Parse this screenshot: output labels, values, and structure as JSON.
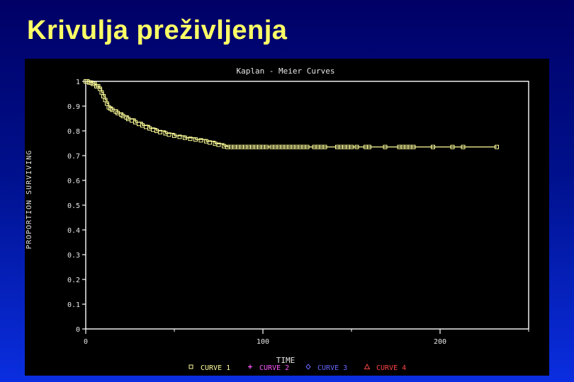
{
  "slide": {
    "title": "Krivulja preživljenja"
  },
  "chart_data": {
    "type": "line",
    "title": "Kaplan - Meier Curves",
    "xlabel": "TIME",
    "ylabel": "PROPORTION SURVIVING",
    "xlim": [
      0,
      250
    ],
    "ylim": [
      0,
      1
    ],
    "x_ticks": [
      "0",
      "100",
      "200"
    ],
    "y_ticks": [
      "0",
      "0.1",
      "0.2",
      "0.3",
      "0.4",
      "0.5",
      "0.6",
      "0.7",
      "0.8",
      "0.9",
      "1"
    ],
    "grid": false,
    "legend_placement": "bottom",
    "legend": [
      {
        "name": "CURVE 1",
        "symbol": "square",
        "color": "#ffff99"
      },
      {
        "name": "CURVE 2",
        "symbol": "plus",
        "color": "#ff55ff"
      },
      {
        "name": "CURVE 3",
        "symbol": "diamond",
        "color": "#6666ff"
      },
      {
        "name": "CURVE 4",
        "symbol": "triangle",
        "color": "#ff4444"
      }
    ],
    "series": [
      {
        "name": "CURVE 1",
        "color": "#ffff99",
        "step": [
          [
            0,
            1.0
          ],
          [
            2,
            0.995
          ],
          [
            4,
            0.99
          ],
          [
            6,
            0.98
          ],
          [
            8,
            0.97
          ],
          [
            9,
            0.955
          ],
          [
            10,
            0.94
          ],
          [
            11,
            0.925
          ],
          [
            12,
            0.91
          ],
          [
            13,
            0.895
          ],
          [
            15,
            0.885
          ],
          [
            18,
            0.872
          ],
          [
            21,
            0.86
          ],
          [
            24,
            0.848
          ],
          [
            28,
            0.835
          ],
          [
            32,
            0.822
          ],
          [
            36,
            0.81
          ],
          [
            40,
            0.8
          ],
          [
            45,
            0.79
          ],
          [
            50,
            0.78
          ],
          [
            56,
            0.772
          ],
          [
            62,
            0.765
          ],
          [
            68,
            0.758
          ],
          [
            73,
            0.748
          ],
          [
            78,
            0.738
          ],
          [
            80,
            0.735
          ],
          [
            232,
            0.735
          ]
        ],
        "censored": [
          [
            0,
            1.0
          ],
          [
            1,
            1.0
          ],
          [
            2,
            0.995
          ],
          [
            3,
            0.995
          ],
          [
            4,
            0.99
          ],
          [
            5,
            0.99
          ],
          [
            6,
            0.98
          ],
          [
            7,
            0.98
          ],
          [
            8,
            0.97
          ],
          [
            9,
            0.955
          ],
          [
            10,
            0.94
          ],
          [
            11,
            0.925
          ],
          [
            12,
            0.91
          ],
          [
            13,
            0.895
          ],
          [
            14,
            0.89
          ],
          [
            15,
            0.885
          ],
          [
            17,
            0.878
          ],
          [
            18,
            0.872
          ],
          [
            20,
            0.866
          ],
          [
            21,
            0.86
          ],
          [
            23,
            0.854
          ],
          [
            24,
            0.848
          ],
          [
            26,
            0.842
          ],
          [
            28,
            0.835
          ],
          [
            30,
            0.828
          ],
          [
            32,
            0.822
          ],
          [
            34,
            0.816
          ],
          [
            36,
            0.81
          ],
          [
            38,
            0.805
          ],
          [
            40,
            0.8
          ],
          [
            42,
            0.795
          ],
          [
            45,
            0.79
          ],
          [
            47,
            0.785
          ],
          [
            50,
            0.78
          ],
          [
            53,
            0.776
          ],
          [
            56,
            0.772
          ],
          [
            59,
            0.768
          ],
          [
            62,
            0.765
          ],
          [
            65,
            0.762
          ],
          [
            68,
            0.758
          ],
          [
            70,
            0.753
          ],
          [
            73,
            0.748
          ],
          [
            75,
            0.744
          ],
          [
            78,
            0.738
          ],
          [
            80,
            0.735
          ],
          [
            82,
            0.735
          ],
          [
            84,
            0.735
          ],
          [
            86,
            0.735
          ],
          [
            88,
            0.735
          ],
          [
            90,
            0.735
          ],
          [
            92,
            0.735
          ],
          [
            94,
            0.735
          ],
          [
            96,
            0.735
          ],
          [
            98,
            0.735
          ],
          [
            100,
            0.735
          ],
          [
            102,
            0.735
          ],
          [
            105,
            0.735
          ],
          [
            107,
            0.735
          ],
          [
            109,
            0.735
          ],
          [
            111,
            0.735
          ],
          [
            113,
            0.735
          ],
          [
            115,
            0.735
          ],
          [
            117,
            0.735
          ],
          [
            119,
            0.735
          ],
          [
            121,
            0.735
          ],
          [
            123,
            0.735
          ],
          [
            125,
            0.735
          ],
          [
            129,
            0.735
          ],
          [
            131,
            0.735
          ],
          [
            133,
            0.735
          ],
          [
            135,
            0.735
          ],
          [
            142,
            0.735
          ],
          [
            144,
            0.735
          ],
          [
            146,
            0.735
          ],
          [
            148,
            0.735
          ],
          [
            150,
            0.735
          ],
          [
            153,
            0.735
          ],
          [
            158,
            0.735
          ],
          [
            160,
            0.735
          ],
          [
            169,
            0.735
          ],
          [
            177,
            0.735
          ],
          [
            179,
            0.735
          ],
          [
            181,
            0.735
          ],
          [
            183,
            0.735
          ],
          [
            185,
            0.735
          ],
          [
            196,
            0.735
          ],
          [
            207,
            0.735
          ],
          [
            213,
            0.735
          ],
          [
            232,
            0.735
          ]
        ]
      }
    ]
  }
}
